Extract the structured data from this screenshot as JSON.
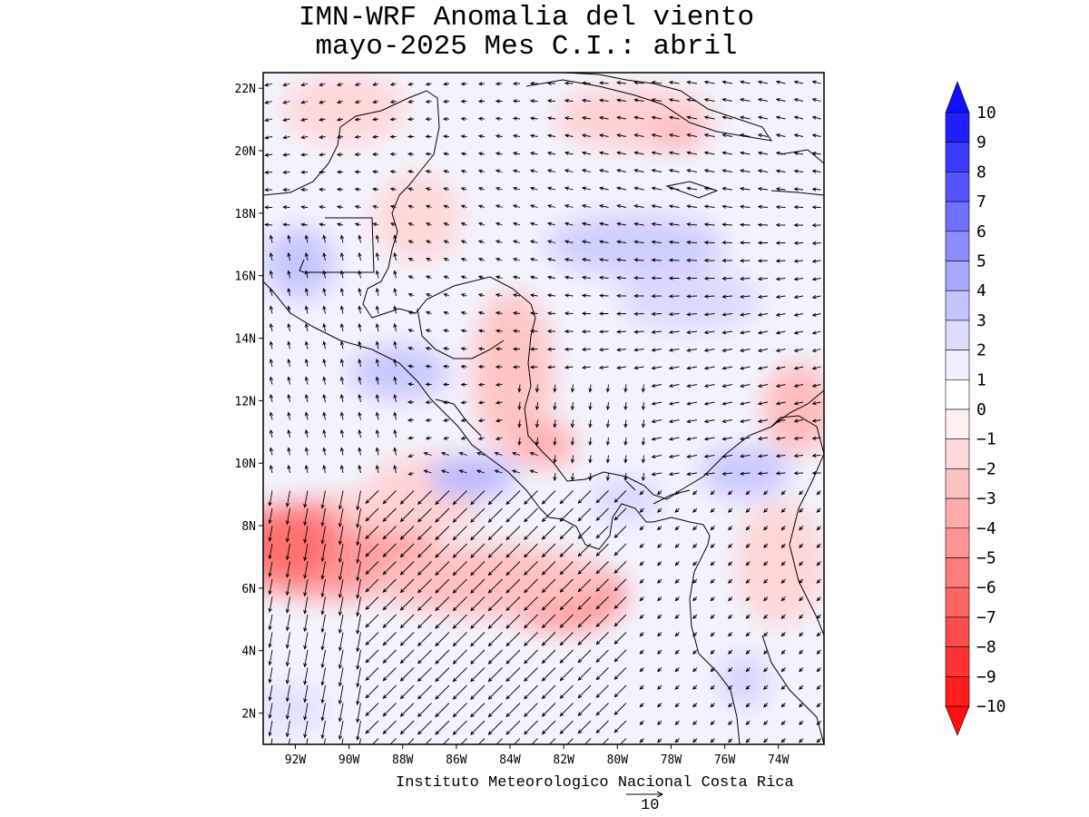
{
  "title": {
    "line1": "IMN-WRF Anomalia del viento",
    "line2": "mayo-2025 Mes C.I.: abril"
  },
  "map": {
    "lon_range": [
      -93.2,
      -72.3
    ],
    "lat_range": [
      1,
      22.5
    ],
    "lat_labels": [
      "2N",
      "4N",
      "6N",
      "8N",
      "10N",
      "12N",
      "14N",
      "16N",
      "18N",
      "20N",
      "22N"
    ],
    "lon_labels": [
      "92W",
      "90W",
      "88W",
      "86W",
      "84W",
      "82W",
      "80W",
      "78W",
      "76W",
      "74W"
    ]
  },
  "colorbar": {
    "labels": [
      "10",
      "9",
      "8",
      "7",
      "6",
      "5",
      "4",
      "3",
      "2",
      "1",
      "0",
      "-1",
      "-2",
      "-3",
      "-4",
      "-5",
      "-6",
      "-7",
      "-8",
      "-9",
      "-10"
    ],
    "colors": [
      "#1f1fff",
      "#3a3aff",
      "#5555ff",
      "#7070ff",
      "#8c8cff",
      "#a8a8ff",
      "#c3c3ff",
      "#dcdcff",
      "#efefff",
      "#ffffff",
      "#fff0f0",
      "#ffdada",
      "#ffc2c2",
      "#ffabab",
      "#ff9393",
      "#ff7c7c",
      "#ff6464",
      "#ff4d4d",
      "#ff3535",
      "#ff1e1e"
    ],
    "top_arrow_color": "#1010ff",
    "bottom_arrow_color": "#ff1010"
  },
  "credit": "Instituto Meteorologico Nacional Costa Rica",
  "reference_vector": {
    "label": "10"
  }
}
